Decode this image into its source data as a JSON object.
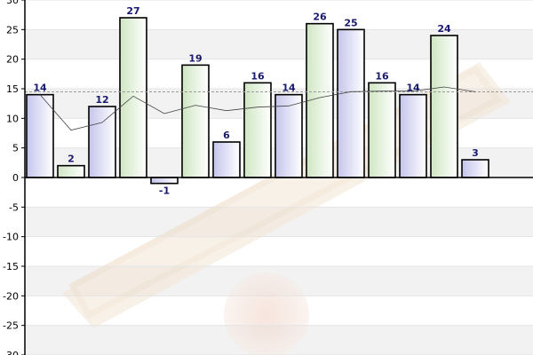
{
  "chart_data": {
    "type": "bar",
    "title": "",
    "xlabel": "",
    "ylabel": "",
    "ylim": [
      -30,
      30
    ],
    "yticks": [
      30,
      25,
      20,
      15,
      10,
      5,
      0,
      -5,
      -10,
      -15,
      -20,
      -25,
      -30
    ],
    "values": [
      14,
      2,
      12,
      27,
      -1,
      19,
      6,
      16,
      14,
      26,
      25,
      16,
      14,
      24,
      3
    ],
    "value_labels": [
      "14",
      "2",
      "12",
      "27",
      "-1",
      "19",
      "6",
      "16",
      "14",
      "26",
      "25",
      "16",
      "14",
      "24",
      "3"
    ],
    "average_line": 14.467,
    "moving_average": [
      14,
      8,
      9.3,
      13.75,
      10.8,
      12.2,
      11.3,
      11.9,
      12.1,
      13.5,
      14.5,
      14.6,
      14.6,
      15.3,
      14.5
    ],
    "grid": true,
    "legend": "none",
    "colors": {
      "bar_fill_a": "#c9c9ee",
      "bar_fill_b": "#d2e6c6",
      "bar_stroke": "#000000",
      "value_label": "#1a1a6e",
      "average_line": "#999999",
      "moving_average": "#333333"
    }
  }
}
